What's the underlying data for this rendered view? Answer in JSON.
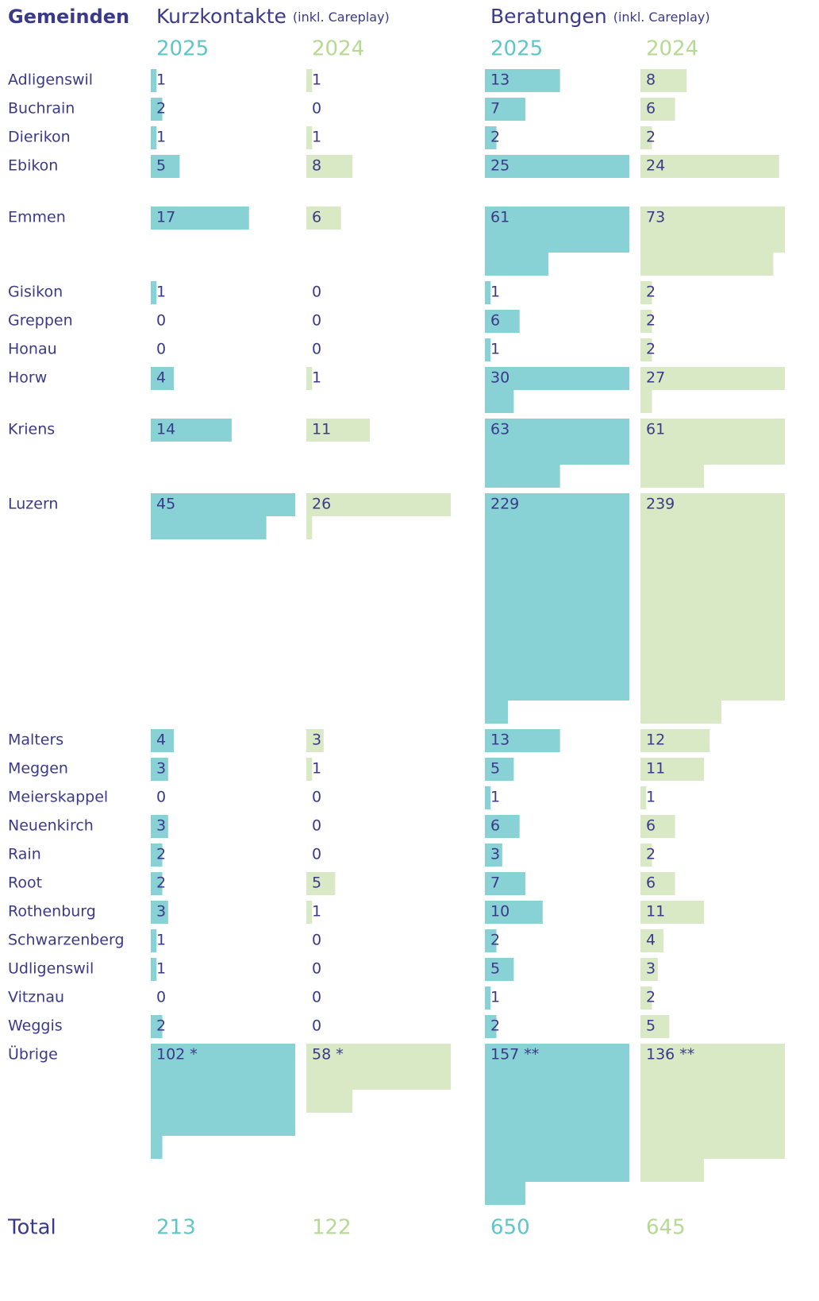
{
  "header": {
    "title": "Gemeinden",
    "groups": [
      {
        "title": "Kurzkontakte",
        "note": "(inkl. Careplay)"
      },
      {
        "title": "Beratungen",
        "note": "(inkl. Careplay)"
      }
    ],
    "total_label": "Total"
  },
  "chart_data": {
    "type": "bar",
    "units_per_line": 25,
    "categories": [
      "Adligenswil",
      "Buchrain",
      "Dierikon",
      "Ebikon",
      "Emmen",
      "Gisikon",
      "Greppen",
      "Honau",
      "Horw",
      "Kriens",
      "Luzern",
      "Malters",
      "Meggen",
      "Meierskappel",
      "Neuenkirch",
      "Rain",
      "Root",
      "Rothenburg",
      "Schwarzenberg",
      "Udligenswil",
      "Vitznau",
      "Weggis",
      "Übrige"
    ],
    "series": [
      {
        "name": "2025",
        "color": "#88d1d5",
        "values": [
          1,
          2,
          1,
          5,
          17,
          1,
          0,
          0,
          4,
          14,
          45,
          4,
          3,
          0,
          3,
          2,
          2,
          3,
          1,
          1,
          0,
          2,
          102
        ],
        "value_labels": [
          null,
          null,
          null,
          null,
          null,
          null,
          null,
          null,
          null,
          null,
          null,
          null,
          null,
          null,
          null,
          null,
          null,
          null,
          null,
          null,
          null,
          null,
          "102 *"
        ],
        "total": 213
      },
      {
        "name": "2024",
        "color": "#d9e9c5",
        "values": [
          1,
          0,
          1,
          8,
          6,
          0,
          0,
          0,
          1,
          11,
          26,
          3,
          1,
          0,
          0,
          0,
          5,
          1,
          0,
          0,
          0,
          0,
          58
        ],
        "value_labels": [
          null,
          null,
          null,
          null,
          null,
          null,
          null,
          null,
          null,
          null,
          null,
          null,
          null,
          null,
          null,
          null,
          null,
          null,
          null,
          null,
          null,
          null,
          "58 *"
        ],
        "total": 122
      },
      {
        "name": "2025",
        "color": "#88d1d5",
        "values": [
          13,
          7,
          2,
          25,
          61,
          1,
          6,
          1,
          30,
          63,
          229,
          13,
          5,
          1,
          6,
          3,
          7,
          10,
          2,
          5,
          1,
          2,
          157
        ],
        "value_labels": [
          null,
          null,
          null,
          null,
          null,
          null,
          null,
          null,
          null,
          null,
          null,
          null,
          null,
          null,
          null,
          null,
          null,
          null,
          null,
          null,
          null,
          null,
          "157 **"
        ],
        "total": 650
      },
      {
        "name": "2024",
        "color": "#d9e9c5",
        "values": [
          8,
          6,
          2,
          24,
          73,
          2,
          2,
          2,
          27,
          61,
          239,
          12,
          11,
          1,
          6,
          2,
          6,
          11,
          4,
          3,
          2,
          5,
          136
        ],
        "value_labels": [
          null,
          null,
          null,
          null,
          null,
          null,
          null,
          null,
          null,
          null,
          null,
          null,
          null,
          null,
          null,
          null,
          null,
          null,
          null,
          null,
          null,
          null,
          "136 **"
        ],
        "total": 645
      }
    ]
  }
}
